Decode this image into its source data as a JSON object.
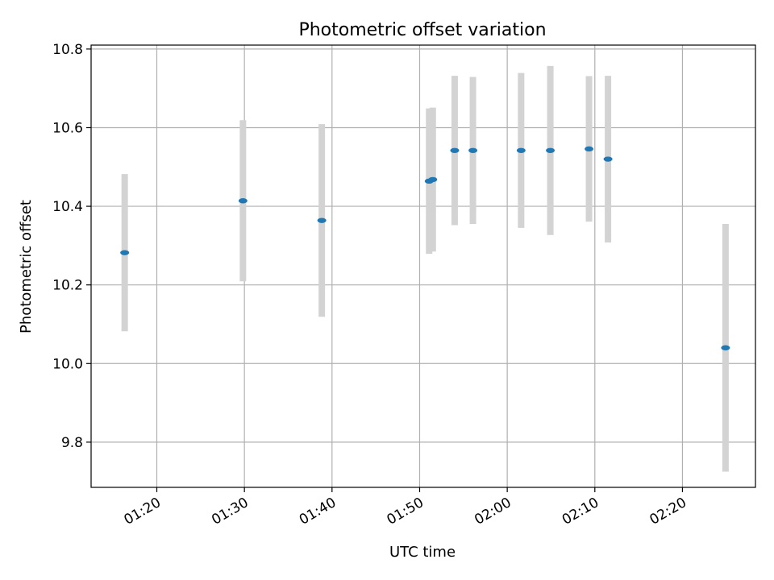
{
  "chart_data": {
    "type": "scatter",
    "title": "Photometric offset variation",
    "xlabel": "UTC time",
    "ylabel": "Photometric offset",
    "x_ticks": [
      "01:20",
      "01:30",
      "01:40",
      "01:50",
      "02:00",
      "02:10",
      "02:20"
    ],
    "y_ticks": [
      "9.8",
      "10.0",
      "10.2",
      "10.4",
      "10.6",
      "10.8"
    ],
    "xlim": [
      "01:12:30",
      "02:28:20"
    ],
    "ylim": [
      9.685,
      10.81
    ],
    "grid": true,
    "marker_color": "#1f77b4",
    "errorbar_color": "#d3d3d3",
    "points": [
      {
        "time": "01:16:20",
        "y": 10.282,
        "yerr": 0.2
      },
      {
        "time": "01:29:50",
        "y": 10.414,
        "yerr": 0.205
      },
      {
        "time": "01:38:50",
        "y": 10.364,
        "yerr": 0.245
      },
      {
        "time": "01:51:05",
        "y": 10.464,
        "yerr": 0.185
      },
      {
        "time": "01:51:30",
        "y": 10.468,
        "yerr": 0.183
      },
      {
        "time": "01:54:00",
        "y": 10.542,
        "yerr": 0.19
      },
      {
        "time": "01:56:05",
        "y": 10.542,
        "yerr": 0.187
      },
      {
        "time": "02:01:35",
        "y": 10.542,
        "yerr": 0.197
      },
      {
        "time": "02:04:55",
        "y": 10.542,
        "yerr": 0.215
      },
      {
        "time": "02:09:20",
        "y": 10.546,
        "yerr": 0.185
      },
      {
        "time": "02:11:30",
        "y": 10.52,
        "yerr": 0.212
      },
      {
        "time": "02:24:55",
        "y": 10.04,
        "yerr": 0.315
      }
    ]
  }
}
